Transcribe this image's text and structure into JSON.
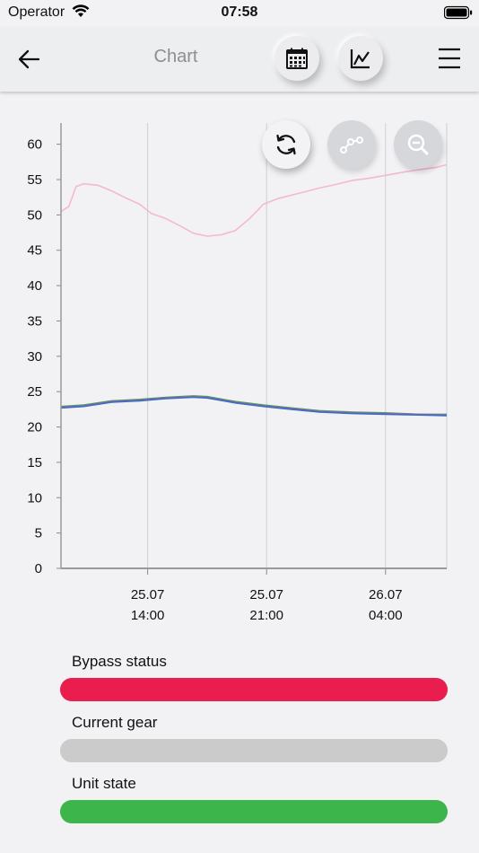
{
  "status_bar": {
    "carrier": "Operator",
    "time": "07:58"
  },
  "header": {
    "title": "Chart",
    "back_icon": "arrow-left-icon",
    "calendar_icon": "calendar-icon",
    "chart_icon": "line-chart-icon",
    "menu_icon": "hamburger-menu-icon"
  },
  "chart_tools": {
    "refresh_icon": "refresh-icon",
    "points_icon": "data-points-icon",
    "zoom_icon": "zoom-out-icon"
  },
  "chart_data": {
    "type": "line",
    "ylim": [
      0,
      63
    ],
    "yticks": [
      0,
      5,
      10,
      15,
      20,
      25,
      30,
      35,
      40,
      45,
      50,
      55,
      60
    ],
    "xlim": [
      "2025-07-25T08:54",
      "2025-07-26T07:36"
    ],
    "xticks": [
      {
        "at": "2025-07-25T14:00",
        "line1": "25.07",
        "line2": "14:00"
      },
      {
        "at": "2025-07-25T21:00",
        "line1": "25.07",
        "line2": "21:00"
      },
      {
        "at": "2025-07-26T04:00",
        "line1": "26.07",
        "line2": "04:00"
      }
    ],
    "grid": {
      "vertical": true,
      "horizontal": false
    },
    "series": [
      {
        "color": "#f5b8cf",
        "x": [
          "2025-07-25T08:54",
          "2025-07-25T09:22",
          "2025-07-25T09:47",
          "2025-07-25T10:14",
          "2025-07-25T11:04",
          "2025-07-25T11:53",
          "2025-07-25T12:43",
          "2025-07-25T13:32",
          "2025-07-25T14:13",
          "2025-07-25T15:03",
          "2025-07-25T15:52",
          "2025-07-25T16:42",
          "2025-07-25T17:31",
          "2025-07-25T18:21",
          "2025-07-25T19:10",
          "2025-07-25T20:00",
          "2025-07-25T20:49",
          "2025-07-25T21:39",
          "2025-07-25T22:28",
          "2025-07-25T23:18",
          "2025-07-26T00:07",
          "2025-07-26T01:04",
          "2025-07-26T02:05",
          "2025-07-26T03:03",
          "2025-07-26T04:00",
          "2025-07-26T04:57",
          "2025-07-26T05:58",
          "2025-07-26T06:56",
          "2025-07-26T07:36"
        ],
        "values": [
          50.5,
          51.2,
          54.0,
          54.4,
          54.2,
          53.4,
          52.4,
          51.5,
          50.2,
          49.5,
          48.5,
          47.4,
          47.0,
          47.2,
          47.8,
          49.5,
          51.5,
          52.3,
          52.8,
          53.3,
          53.8,
          54.3,
          54.9,
          55.2,
          55.6,
          56.0,
          56.4,
          56.7,
          57.1
        ]
      },
      {
        "color": "#45a84a",
        "x": [
          "2025-07-25T08:54",
          "2025-07-25T10:14",
          "2025-07-25T11:53",
          "2025-07-25T13:32",
          "2025-07-25T15:03",
          "2025-07-25T16:42",
          "2025-07-25T17:31",
          "2025-07-25T19:10",
          "2025-07-25T20:49",
          "2025-07-25T22:28",
          "2025-07-26T00:07",
          "2025-07-26T02:05",
          "2025-07-26T04:00",
          "2025-07-26T05:58",
          "2025-07-26T07:36"
        ],
        "values": [
          22.9,
          23.1,
          23.7,
          23.9,
          24.2,
          24.4,
          24.3,
          23.6,
          23.1,
          22.7,
          22.3,
          22.1,
          22.0,
          21.8,
          21.8
        ]
      },
      {
        "color": "#9a5bb5",
        "x": [
          "2025-07-25T08:54",
          "2025-07-25T10:14",
          "2025-07-25T11:53",
          "2025-07-25T13:32",
          "2025-07-25T15:03",
          "2025-07-25T16:42",
          "2025-07-25T17:31",
          "2025-07-25T19:10",
          "2025-07-25T20:49",
          "2025-07-25T22:28",
          "2025-07-26T00:07",
          "2025-07-26T02:05",
          "2025-07-26T04:00",
          "2025-07-26T05:58",
          "2025-07-26T07:36"
        ],
        "values": [
          22.8,
          23.0,
          23.6,
          23.8,
          24.1,
          24.3,
          24.2,
          23.5,
          23.0,
          22.6,
          22.2,
          22.0,
          21.9,
          21.8,
          21.7
        ]
      },
      {
        "color": "#3b6fc4",
        "x": [
          "2025-07-25T08:54",
          "2025-07-25T10:14",
          "2025-07-25T11:53",
          "2025-07-25T13:32",
          "2025-07-25T15:03",
          "2025-07-25T16:42",
          "2025-07-25T17:31",
          "2025-07-25T19:10",
          "2025-07-25T20:49",
          "2025-07-25T22:28",
          "2025-07-26T00:07",
          "2025-07-26T02:05",
          "2025-07-26T04:00",
          "2025-07-26T05:58",
          "2025-07-26T07:36"
        ],
        "values": [
          22.7,
          22.9,
          23.5,
          23.7,
          24.0,
          24.2,
          24.1,
          23.4,
          22.9,
          22.5,
          22.1,
          21.9,
          21.8,
          21.7,
          21.6
        ]
      }
    ]
  },
  "status_items": [
    {
      "label": "Bypass status",
      "color": "#e91e4f",
      "fill": 1.0
    },
    {
      "label": "Current gear",
      "color": "#cbcbcb",
      "fill": 1.0
    },
    {
      "label": "Unit state",
      "color": "#3cb54a",
      "fill": 1.0
    }
  ]
}
